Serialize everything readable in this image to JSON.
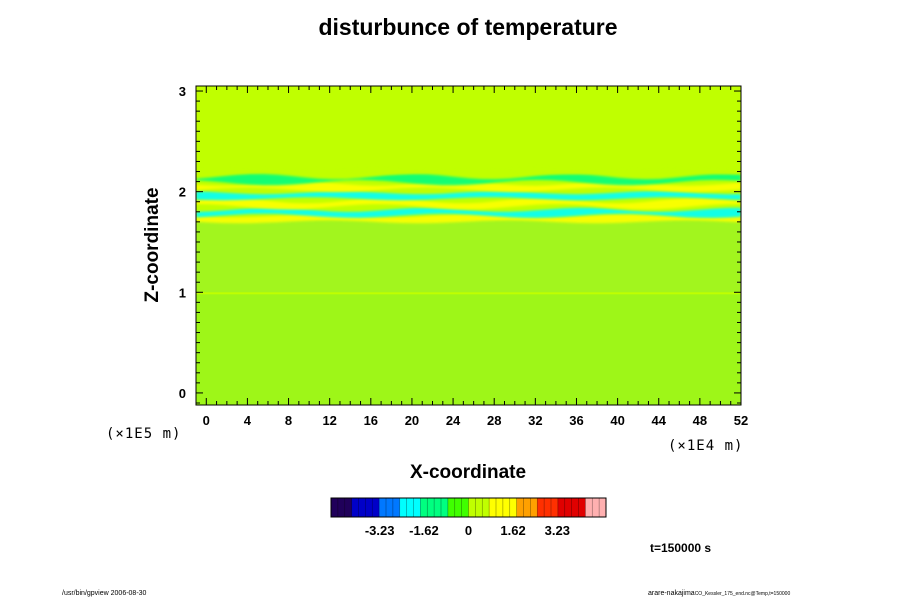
{
  "chart_data": {
    "type": "heatmap",
    "title": "disturbunce of temperature",
    "xlabel": "X-coordinate",
    "ylabel": "Z-coordinate",
    "x_unit": "(×1E4 m)",
    "y_unit": "(×1E5 m)",
    "xlim": [
      -1,
      52
    ],
    "ylim": [
      -0.12,
      3.05
    ],
    "x_ticks": [
      0,
      4,
      8,
      12,
      16,
      20,
      24,
      28,
      32,
      36,
      40,
      44,
      48,
      52
    ],
    "y_ticks": [
      0,
      1,
      2,
      3
    ],
    "colorbar": {
      "range": [
        -5,
        5
      ],
      "ticks": [
        -3.23,
        -1.62,
        0,
        1.62,
        3.23
      ],
      "tick_labels": [
        "-3.23",
        "-1.62",
        "0",
        "1.62",
        "3.23"
      ],
      "colors": [
        "#20005a",
        "#0000c8",
        "#0078ff",
        "#00ffff",
        "#00ff80",
        "#40ff00",
        "#c0ff00",
        "#ffff00",
        "#ffa000",
        "#ff3000",
        "#e00000",
        "#ffb0b0"
      ]
    },
    "bands": [
      {
        "z": 1.73,
        "value": 1.4
      },
      {
        "z": 1.79,
        "value": -2.2
      },
      {
        "z": 1.88,
        "value": 1.0
      },
      {
        "z": 1.96,
        "value": -2.0
      },
      {
        "z": 2.05,
        "value": 1.3
      },
      {
        "z": 2.12,
        "value": -0.9
      },
      {
        "z": 2.22,
        "value": 0.6
      }
    ],
    "background_value": 0.2,
    "annotation": "t=150000 s"
  },
  "footer": {
    "left": "/usr/bin/gpview 2006-08-30",
    "right_main": "arare-nakajima",
    "right_small": "CO_Kessler_175_end.nc@Temp,t=150000"
  }
}
